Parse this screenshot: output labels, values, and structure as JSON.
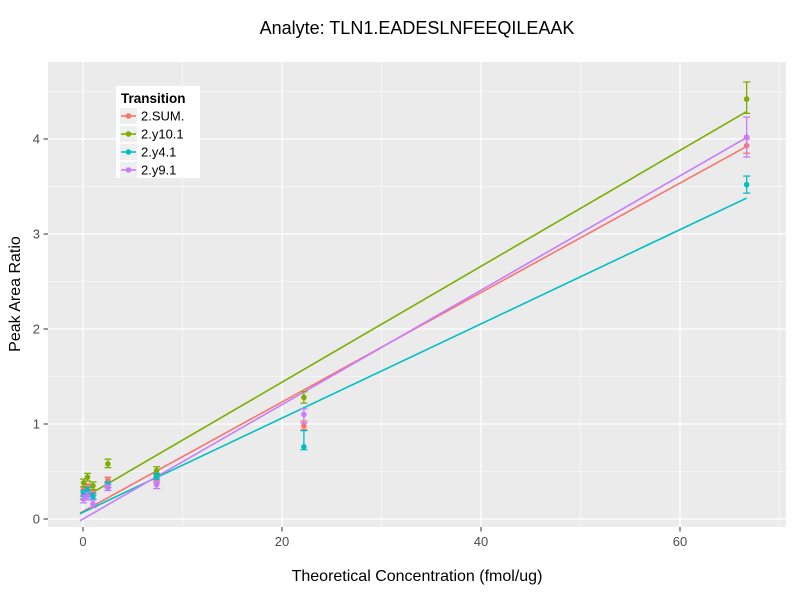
{
  "chart_data": {
    "type": "scatter",
    "title": "Analyte: TLN1.EADESLNFEEQILEAAK",
    "xlabel": "Theoretical Concentration (fmol/ug)",
    "ylabel": "Peak Area Ratio",
    "xlim": [
      -3.5,
      70.6
    ],
    "ylim": [
      -0.08,
      4.81
    ],
    "x_ticks": [
      0,
      20,
      40,
      60
    ],
    "y_ticks": [
      0,
      1,
      2,
      3,
      4
    ],
    "x_minor_ticks": [
      10,
      30,
      50,
      70
    ],
    "y_minor_ticks": [
      0.5,
      1.5,
      2.5,
      3.5,
      4.5
    ],
    "grid": true,
    "panel_color": "#EBEBEB",
    "gridline_color": "#FFFFFF",
    "legend": {
      "title": "Transition",
      "position": "top-left-inside",
      "entries": [
        "2.SUM.",
        "2.y10.1",
        "2.y4.1",
        "2.y9.1"
      ]
    },
    "series": [
      {
        "name": "2.SUM.",
        "color": "#F8766D",
        "fit_line": {
          "intercept": 0.08,
          "slope": 0.0576,
          "x_start": -0.3,
          "x_end": 66.7
        },
        "points": [
          {
            "x": 0.06,
            "y": 0.31,
            "lo": 0.28,
            "hi": 0.34
          },
          {
            "x": 0.45,
            "y": 0.34,
            "lo": 0.31,
            "hi": 0.37
          },
          {
            "x": 1.0,
            "y": 0.28,
            "lo": 0.25,
            "hi": 0.31
          },
          {
            "x": 2.5,
            "y": 0.41,
            "lo": 0.38,
            "hi": 0.44
          },
          {
            "x": 7.4,
            "y": 0.41,
            "lo": 0.38,
            "hi": 0.44
          },
          {
            "x": 22.2,
            "y": 0.98,
            "lo": 0.94,
            "hi": 1.03
          },
          {
            "x": 66.7,
            "y": 3.93,
            "lo": 3.85,
            "hi": 4.0
          }
        ]
      },
      {
        "name": "2.y10.1",
        "color": "#7CAE00",
        "fit_line": {
          "intercept": 0.22,
          "slope": 0.061,
          "x_start": -0.3,
          "x_end": 66.7
        },
        "points": [
          {
            "x": 0.06,
            "y": 0.38,
            "lo": 0.34,
            "hi": 0.42
          },
          {
            "x": 0.45,
            "y": 0.44,
            "lo": 0.4,
            "hi": 0.48
          },
          {
            "x": 1.0,
            "y": 0.35,
            "lo": 0.31,
            "hi": 0.39
          },
          {
            "x": 2.5,
            "y": 0.58,
            "lo": 0.54,
            "hi": 0.63
          },
          {
            "x": 7.4,
            "y": 0.51,
            "lo": 0.47,
            "hi": 0.55
          },
          {
            "x": 22.2,
            "y": 1.28,
            "lo": 1.22,
            "hi": 1.34
          },
          {
            "x": 66.7,
            "y": 4.42,
            "lo": 4.27,
            "hi": 4.6
          }
        ]
      },
      {
        "name": "2.y4.1",
        "color": "#00BFC4",
        "fit_line": {
          "intercept": 0.07,
          "slope": 0.0496,
          "x_start": -0.3,
          "x_end": 66.7
        },
        "points": [
          {
            "x": 0.06,
            "y": 0.27,
            "lo": 0.24,
            "hi": 0.3
          },
          {
            "x": 0.45,
            "y": 0.3,
            "lo": 0.27,
            "hi": 0.33
          },
          {
            "x": 1.0,
            "y": 0.24,
            "lo": 0.21,
            "hi": 0.27
          },
          {
            "x": 2.5,
            "y": 0.36,
            "lo": 0.33,
            "hi": 0.39
          },
          {
            "x": 7.4,
            "y": 0.45,
            "lo": 0.42,
            "hi": 0.48
          },
          {
            "x": 22.2,
            "y": 0.76,
            "lo": 0.73,
            "hi": 0.93
          },
          {
            "x": 66.7,
            "y": 3.52,
            "lo": 3.43,
            "hi": 3.61
          }
        ]
      },
      {
        "name": "2.y9.1",
        "color": "#C77CFF",
        "fit_line": {
          "intercept": 0.0,
          "slope": 0.0602,
          "x_start": -0.3,
          "x_end": 66.7
        },
        "points": [
          {
            "x": 0.06,
            "y": 0.21,
            "lo": 0.17,
            "hi": 0.25
          },
          {
            "x": 0.45,
            "y": 0.24,
            "lo": 0.2,
            "hi": 0.28
          },
          {
            "x": 1.0,
            "y": 0.16,
            "lo": 0.12,
            "hi": 0.2
          },
          {
            "x": 2.5,
            "y": 0.33,
            "lo": 0.3,
            "hi": 0.36
          },
          {
            "x": 7.4,
            "y": 0.36,
            "lo": 0.32,
            "hi": 0.4
          },
          {
            "x": 22.2,
            "y": 1.1,
            "lo": 1.01,
            "hi": 1.16
          },
          {
            "x": 66.7,
            "y": 4.02,
            "lo": 3.81,
            "hi": 4.23
          }
        ]
      }
    ]
  }
}
